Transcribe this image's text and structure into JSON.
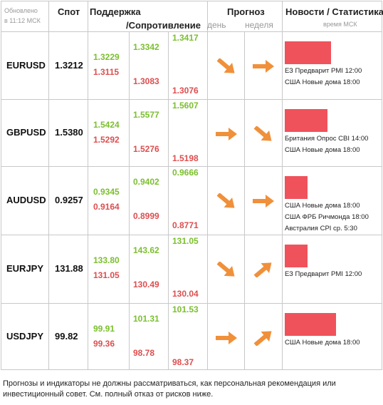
{
  "header": {
    "updated_line1": "Обновлено",
    "updated_line2": "в 11:12 МСК",
    "spot": "Спот",
    "support": "Поддержка",
    "resistance": "/Сопротивление",
    "forecast": "Прогноз",
    "day": "день",
    "week": "неделя",
    "news": "Новости / Статистика",
    "time_note": "время МСК"
  },
  "rows": [
    {
      "pair": "EURUSD",
      "spot": "1.3212",
      "s1": {
        "g": "1.3229",
        "r": "1.3115"
      },
      "s2": {
        "g": "1.3342",
        "r": "1.3083"
      },
      "s3": {
        "g": "1.3417",
        "r": "1.3076"
      },
      "day_arrow": "arrow-down-right-icon",
      "week_arrow": "arrow-right-icon",
      "bar_fraction": 0.65,
      "news": [
        "ЕЗ Предварит PMI 12:00",
        "США Новые дома 18:00"
      ]
    },
    {
      "pair": "GBPUSD",
      "spot": "1.5380",
      "s1": {
        "g": "1.5424",
        "r": "1.5292"
      },
      "s2": {
        "g": "1.5577",
        "r": "1.5276"
      },
      "s3": {
        "g": "1.5607",
        "r": "1.5198"
      },
      "day_arrow": "arrow-right-icon",
      "week_arrow": "arrow-down-right-icon",
      "bar_fraction": 0.6,
      "news": [
        "Британия Опрос CBI 14:00",
        "США Новые дома 18:00"
      ]
    },
    {
      "pair": "AUDUSD",
      "spot": "0.9257",
      "s1": {
        "g": "0.9345",
        "r": "0.9164"
      },
      "s2": {
        "g": "0.9402",
        "r": "0.8999"
      },
      "s3": {
        "g": "0.9666",
        "r": "0.8771"
      },
      "day_arrow": "arrow-down-right-icon",
      "week_arrow": "arrow-right-icon",
      "bar_fraction": 0.32,
      "news": [
        "США Новые дома 18:00",
        "США ФРБ Ричмонда 18:00",
        "Австралия CPI ср. 5:30"
      ]
    },
    {
      "pair": "EURJPY",
      "spot": "131.88",
      "s1": {
        "g": "133.80",
        "r": "131.05"
      },
      "s2": {
        "g": "143.62",
        "r": "130.49"
      },
      "s3": {
        "g": "131.05",
        "r": "130.04"
      },
      "day_arrow": "arrow-down-right-icon",
      "week_arrow": "arrow-up-right-icon",
      "bar_fraction": 0.32,
      "news": [
        "ЕЗ Предварит PMI 12:00"
      ]
    },
    {
      "pair": "USDJPY",
      "spot": "99.82",
      "s1": {
        "g": "99.91",
        "r": "99.36"
      },
      "s2": {
        "g": "101.31",
        "r": "98.78"
      },
      "s3": {
        "g": "101.53",
        "r": "98.37"
      },
      "day_arrow": "arrow-right-icon",
      "week_arrow": "arrow-up-right-icon",
      "bar_fraction": 0.72,
      "news": [
        "США Новые дома 18:00"
      ]
    }
  ],
  "colors": {
    "support": "#7bbf2e",
    "resistance": "#dd4e4e",
    "bar": "#f0525b",
    "arrow": "#f0903a"
  },
  "disclaimer": "Прогнозы и индикаторы не должны рассматриваться, как персональная рекомендация или инвестиционный совет. См. полный отказ от рисков ниже."
}
